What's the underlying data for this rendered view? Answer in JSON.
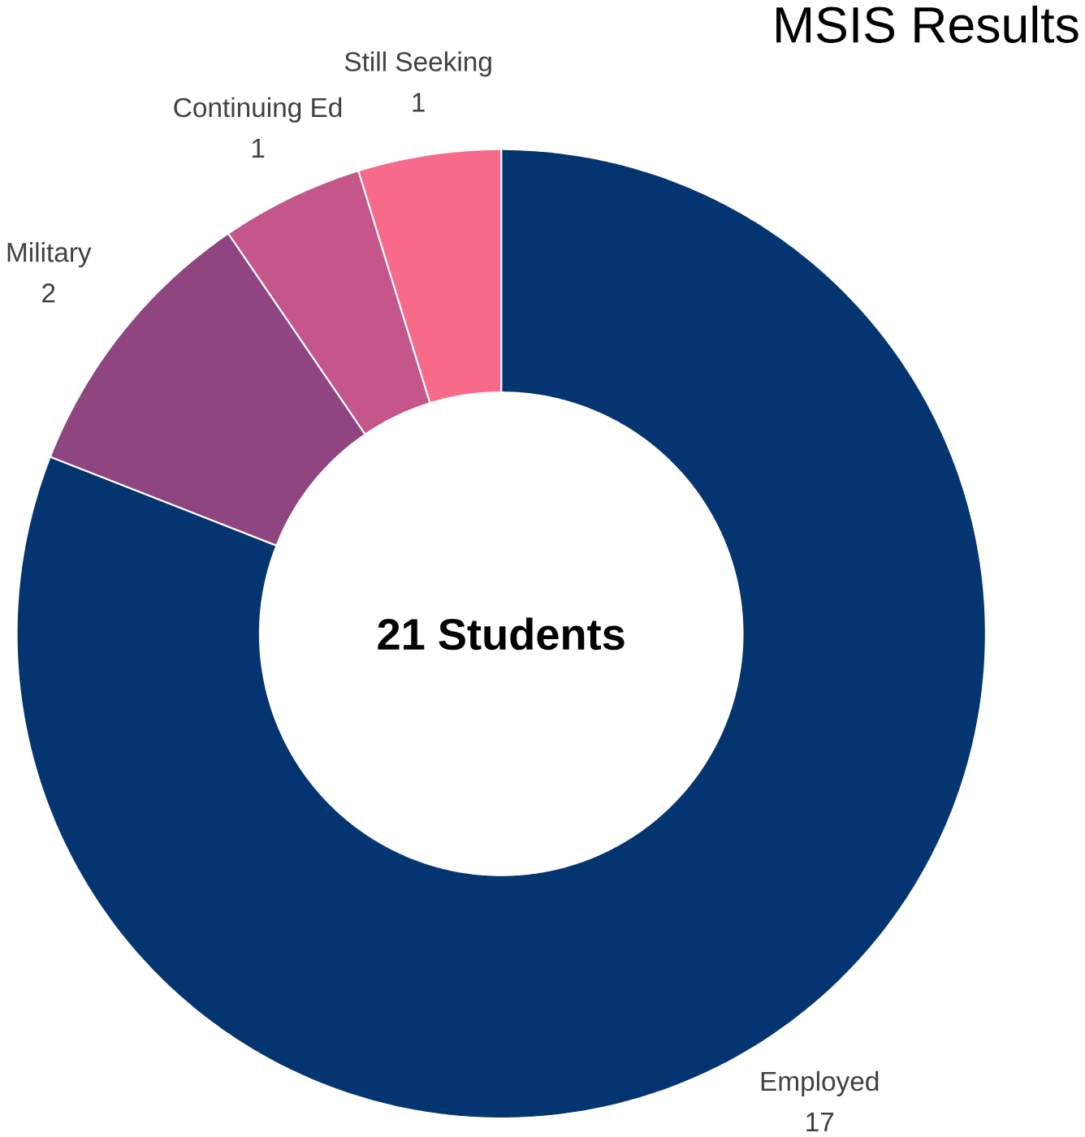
{
  "chart_data": {
    "type": "donut",
    "title": "MSIS Results",
    "categories": [
      "Employed",
      "Military",
      "Continuing Ed",
      "Still Seeking"
    ],
    "values": [
      17,
      2,
      1,
      1
    ],
    "colors": [
      "#043571",
      "#8e4580",
      "#c4568a",
      "#f76a8a"
    ],
    "data_labels": true,
    "annotations": [
      "21 Students"
    ]
  }
}
